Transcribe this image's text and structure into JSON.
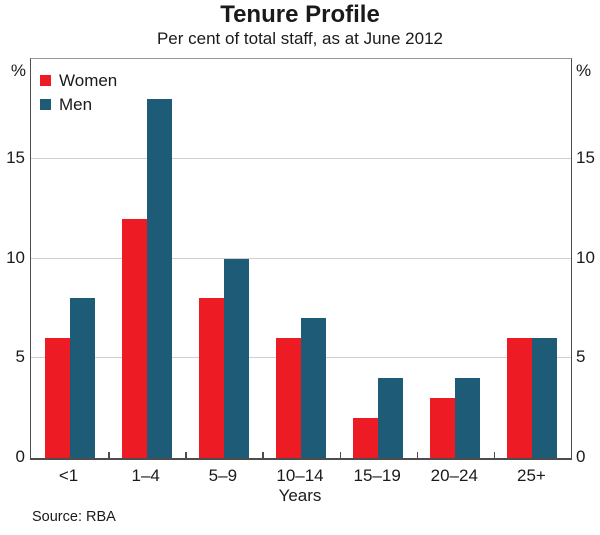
{
  "source": "Source: RBA",
  "chart_data": {
    "type": "bar",
    "title": "Tenure Profile",
    "subtitle": "Per cent of total staff, as at June 2012",
    "xlabel": "Years",
    "ylabel": "%",
    "categories": [
      "<1",
      "1–4",
      "5–9",
      "10–14",
      "15–19",
      "20–24",
      "25+"
    ],
    "series": [
      {
        "name": "Women",
        "color": "#ED1C24",
        "values": [
          6,
          12,
          8,
          6,
          2,
          3,
          6
        ]
      },
      {
        "name": "Men",
        "color": "#1D5B77",
        "values": [
          8,
          18,
          10,
          7,
          4,
          4,
          6
        ]
      }
    ],
    "ylim": [
      0,
      20
    ],
    "yticks": [
      0,
      5,
      10,
      15
    ],
    "grid": true,
    "grid_color": "#cfcfcf",
    "legend_position": "top-left",
    "axis_color": "#4d4d4d"
  }
}
